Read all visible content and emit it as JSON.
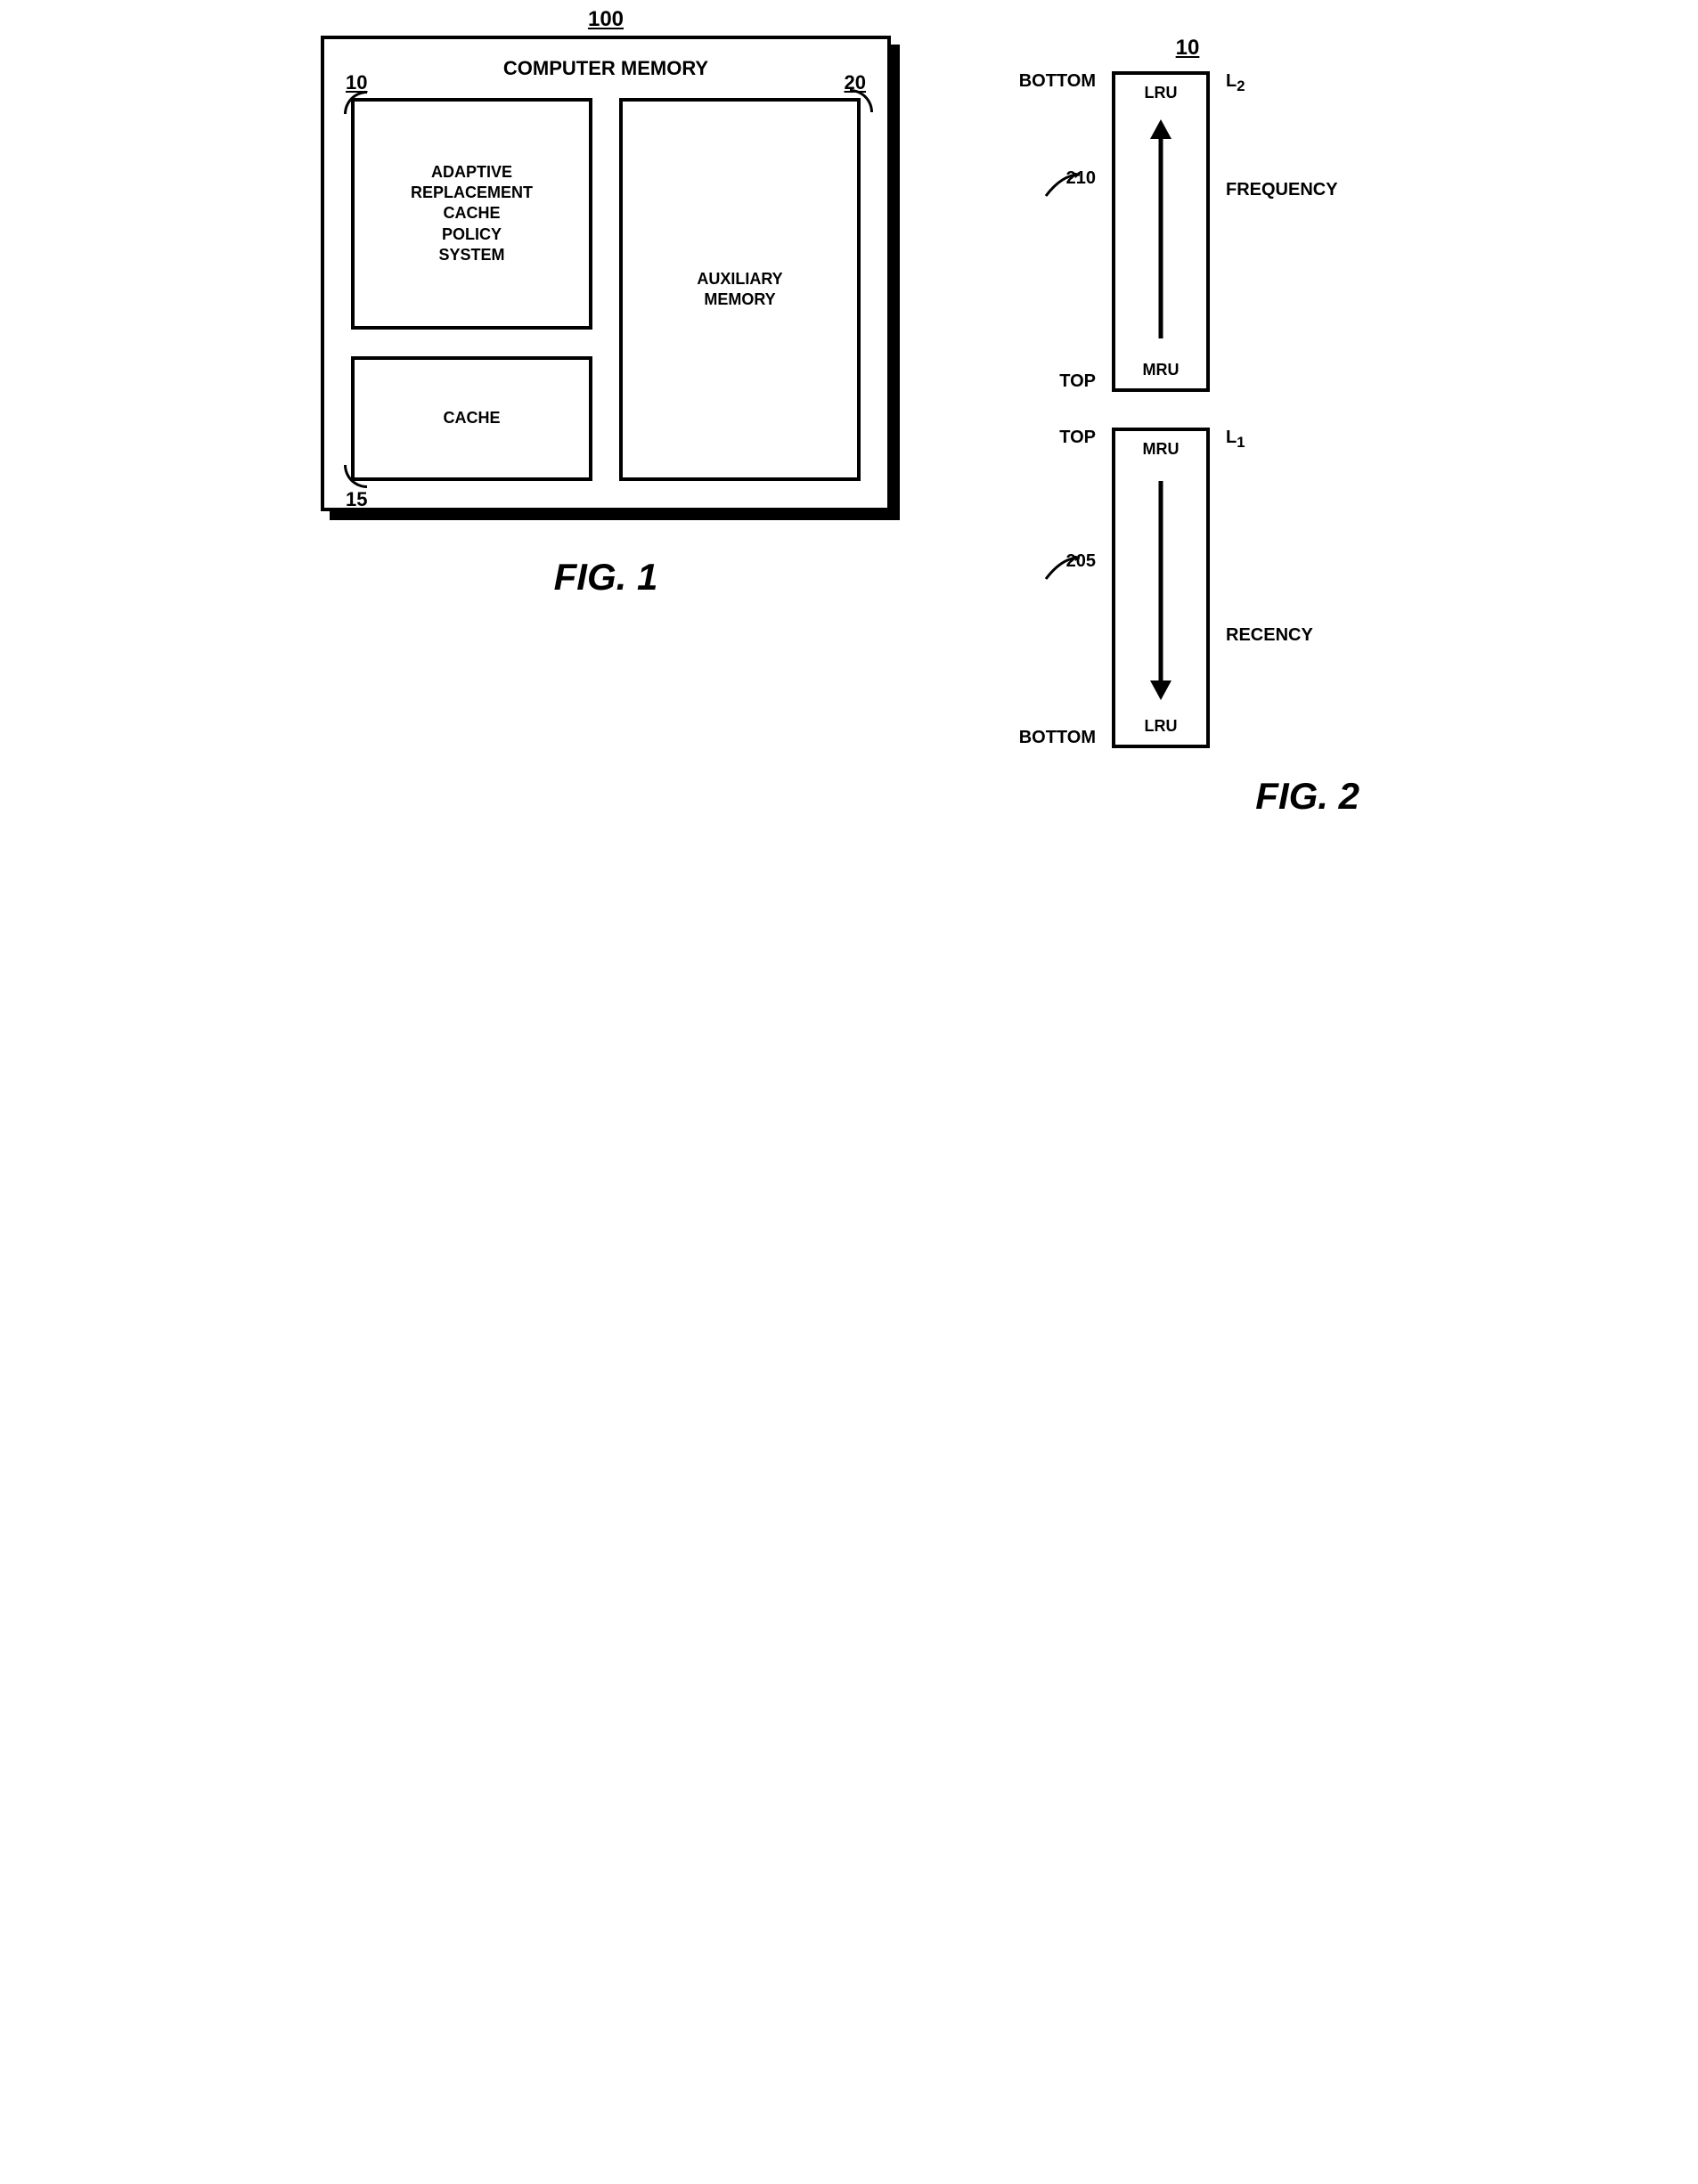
{
  "fig1": {
    "ref": "100",
    "title": "COMPUTER MEMORY",
    "boxes": {
      "arcp": {
        "ref": "10",
        "label": "ADAPTIVE\nREPLACEMENT\nCACHE\nPOLICY\nSYSTEM"
      },
      "aux": {
        "ref": "20",
        "label": "AUXILIARY\nMEMORY"
      },
      "cache": {
        "ref": "15",
        "label": "CACHE"
      }
    },
    "caption": "FIG. 1"
  },
  "fig2": {
    "ref_top": "10",
    "lists": {
      "l2": {
        "ref": "210",
        "name": "L",
        "sub": "2",
        "side_top": "BOTTOM",
        "side_bot": "TOP",
        "end_top": "LRU",
        "end_bot": "MRU",
        "arrow": "up",
        "right_label": "FREQUENCY"
      },
      "l1": {
        "ref": "205",
        "name": "L",
        "sub": "1",
        "side_top": "TOP",
        "side_bot": "BOTTOM",
        "end_top": "MRU",
        "end_bot": "LRU",
        "arrow": "down",
        "right_label": "RECENCY"
      }
    },
    "caption": "FIG. 2",
    "colors": {
      "stroke": "#000000",
      "bg": "#ffffff"
    }
  }
}
